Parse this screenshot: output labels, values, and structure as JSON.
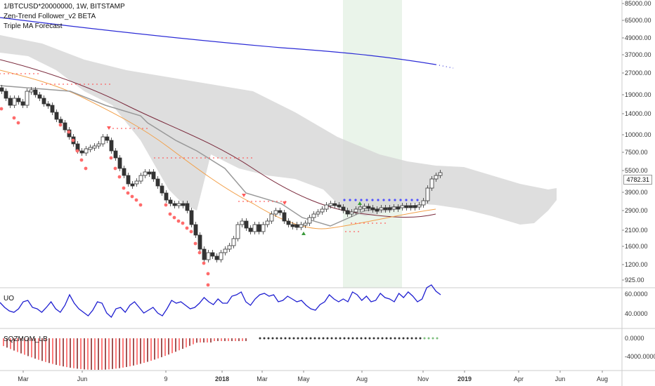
{
  "header": {
    "symbol_line": "1/BTCUSD*20000000, 1W, BITSTAMP",
    "indicator_1": "Zen-Trend Follower_v2 BETA",
    "indicator_2": "Triple MA Forecast"
  },
  "main_price_axis": {
    "ticks": [
      "85000.00",
      "65000.00",
      "49000.00",
      "37000.00",
      "27000.00",
      "19000.00",
      "14000.00",
      "10000.00",
      "7500.00",
      "5500.00",
      "3900.00",
      "2900.00",
      "2100.00",
      "1600.00",
      "1200.00",
      "925.00"
    ],
    "last_price": "4782.31"
  },
  "uo_pane": {
    "label": "UO",
    "ticks": [
      "60.0000",
      "40.0000"
    ]
  },
  "mom_pane": {
    "label": "SQZMOM_LB",
    "ticks": [
      "0.0000",
      "-4000.0000"
    ]
  },
  "time_axis": {
    "labels": [
      "Mar",
      "Jun",
      "9",
      "2018",
      "Mar",
      "May",
      "Aug",
      "Nov",
      "2019",
      "Apr",
      "Jun",
      "Aug"
    ]
  },
  "colors": {
    "up_candle": "#ffffff",
    "down_candle": "#333333",
    "ma_blue": "#2b2bd6",
    "ma_maroon": "#7a2a3c",
    "ma_orange": "#f2a04a",
    "cloud": "#d4d4d4",
    "uo_line": "#1f1fd1",
    "highlight_zone": "#eaf5ea",
    "mom_red": "#ff5a5a",
    "mom_dark": "#8a2a2a"
  }
}
